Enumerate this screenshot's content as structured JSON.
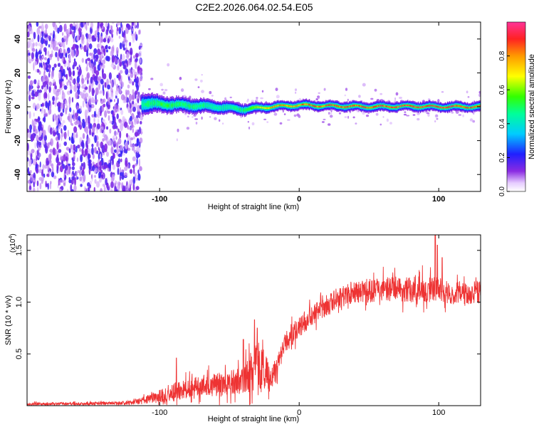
{
  "title": "C2E2.2026.064.02.54.E05",
  "colors": {
    "series": "#ee3333",
    "axis": "#000000",
    "spectrum_bg": "#ffffff",
    "noise_purple": "#7a2bf0",
    "noise_light": "#d9b8ff"
  },
  "chart_data": [
    {
      "type": "heatmap",
      "name": "spectrogram",
      "xlabel": "Height of straight line (km)",
      "ylabel": "Frequency (Hz)",
      "xlim": [
        -195,
        130
      ],
      "ylim": [
        -50,
        50
      ],
      "xticks": [
        -100,
        0,
        100
      ],
      "yticks": [
        -40,
        -20,
        0,
        20,
        40
      ],
      "colorbar": {
        "label": "Normalized spectral amplitude",
        "range": [
          0,
          1
        ],
        "ticks": [
          "0.0",
          "0.2",
          "0.4",
          "0.6",
          "0.8"
        ],
        "tick_values": [
          0.0,
          0.2,
          0.4,
          0.6,
          0.8
        ]
      },
      "noise_region_x": [
        -195,
        -113
      ],
      "signal_ridge": {
        "x": [
          -113,
          -100,
          -80,
          -60,
          -40,
          -20,
          0,
          20,
          50,
          80,
          100,
          130
        ],
        "frequency": [
          2,
          1.5,
          0.8,
          0,
          -1.5,
          0,
          1,
          0.5,
          0,
          0.3,
          0,
          0
        ],
        "halfwidth": [
          7,
          5,
          4.5,
          4,
          3.5,
          3,
          3,
          3,
          3,
          3,
          3,
          3
        ],
        "peak_amplitude": [
          0.45,
          0.55,
          0.5,
          0.45,
          0.5,
          0.8,
          0.85,
          0.9,
          0.9,
          0.95,
          0.95,
          0.9
        ]
      }
    },
    {
      "type": "line",
      "name": "snr",
      "xlabel": "Height of straight line (km)",
      "ylabel": "SNR (10 * v/v)",
      "multiplier_label": "(x10",
      "multiplier_exp": "4",
      "multiplier_close": ")",
      "xlim": [
        -195,
        130
      ],
      "ylim": [
        0,
        16500
      ],
      "xticks": [
        -100,
        0,
        100
      ],
      "yticks": [
        5000,
        10000,
        15000
      ],
      "ytick_labels": [
        "0.5",
        "1.0",
        "1.5"
      ],
      "x": [
        -195,
        -160,
        -125,
        -115,
        -100,
        -90,
        -80,
        -70,
        -60,
        -50,
        -45,
        -40,
        -35,
        -30,
        -25,
        -20,
        -15,
        -10,
        -5,
        0,
        5,
        10,
        15,
        20,
        25,
        30,
        40,
        50,
        60,
        70,
        80,
        90,
        95,
        100,
        105,
        110,
        120,
        130
      ],
      "y": [
        150,
        180,
        250,
        400,
        900,
        1300,
        1600,
        1900,
        2000,
        2200,
        2300,
        2500,
        3000,
        3800,
        3200,
        2500,
        4000,
        6000,
        7000,
        7500,
        8200,
        8800,
        9300,
        9700,
        10200,
        10500,
        10900,
        11100,
        11200,
        11300,
        11200,
        11300,
        11200,
        11300,
        11000,
        10900,
        10900,
        11000
      ],
      "spread": [
        200,
        200,
        250,
        400,
        900,
        1300,
        1300,
        1500,
        1700,
        1700,
        1800,
        2000,
        2800,
        3500,
        3200,
        1500,
        1500,
        1500,
        1500,
        1400,
        1400,
        1400,
        1500,
        1500,
        1500,
        1500,
        1600,
        1600,
        1700,
        1700,
        1800,
        1800,
        1700,
        1700,
        1600,
        1600,
        1600,
        1600
      ],
      "spikes": [
        {
          "x": -88.0,
          "y": 4600
        },
        {
          "x": -40.0,
          "y": 6400
        },
        {
          "x": -32.0,
          "y": 8300
        },
        {
          "x": -30.0,
          "y": 7500
        },
        {
          "x": 97.5,
          "y": 16500
        },
        {
          "x": 99.0,
          "y": 15500
        },
        {
          "x": 102.5,
          "y": 14300
        }
      ]
    }
  ]
}
